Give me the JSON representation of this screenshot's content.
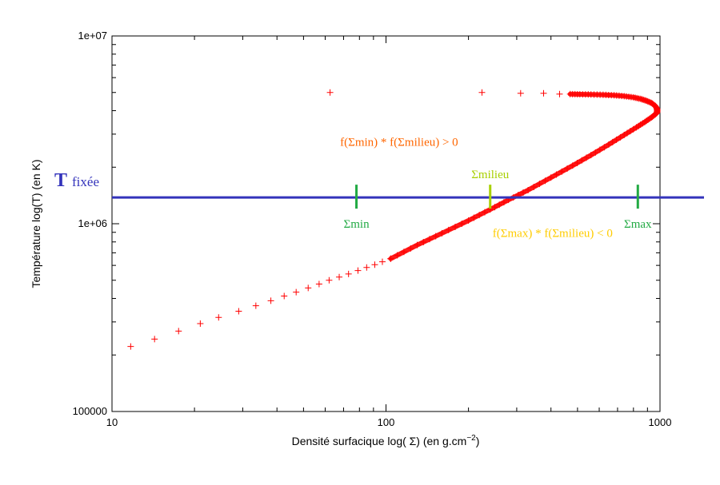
{
  "chart_data": {
    "type": "scatter",
    "xscale": "log",
    "yscale": "log",
    "xlim": [
      10,
      1000
    ],
    "ylim": [
      100000,
      10000000
    ],
    "xlabel_main": "Densité surfacique log( Σ) (en g.cm",
    "xlabel_sup": "−2",
    "xlabel_end": ")",
    "ylabel": "Température log(T) (en K)",
    "x_ticks": [
      {
        "value": 10,
        "label": "10"
      },
      {
        "value": 100,
        "label": "100"
      },
      {
        "value": 1000,
        "label": "1000"
      }
    ],
    "y_ticks": [
      {
        "value": 100000,
        "label": "100000"
      },
      {
        "value": 1000000,
        "label": "1e+06"
      },
      {
        "value": 10000000,
        "label": "1e+07"
      }
    ],
    "series": [
      {
        "name": "equilibrium",
        "marker": "+",
        "color": "#ff0000",
        "points": [
          [
            11.7,
            222000
          ],
          [
            14.3,
            243000
          ],
          [
            17.5,
            268000
          ],
          [
            21.0,
            294000
          ],
          [
            24.5,
            317000
          ],
          [
            29.0,
            342000
          ],
          [
            33.5,
            366000
          ],
          [
            38.0,
            389000
          ],
          [
            42.5,
            412000
          ],
          [
            47.0,
            432000
          ],
          [
            52.0,
            455000
          ],
          [
            57.0,
            477000
          ],
          [
            62.0,
            500000
          ],
          [
            67.5,
            520000
          ],
          [
            73.0,
            540000
          ],
          [
            79.0,
            563000
          ],
          [
            85.0,
            585000
          ],
          [
            91.0,
            605000
          ],
          [
            97.0,
            627000
          ],
          [
            104.0,
            651000
          ],
          [
            62.5,
            5000000
          ],
          [
            224.0,
            5000000
          ],
          [
            310.0,
            4950000
          ],
          [
            376.0,
            4950000
          ],
          [
            430.0,
            4900000
          ],
          [
            470.0,
            4900000
          ]
        ]
      }
    ],
    "curve": {
      "color": "#ff0000",
      "x": [
        104,
        130,
        160,
        200,
        240,
        280,
        330,
        400,
        480,
        560,
        650,
        740,
        820,
        880,
        930,
        960,
        975,
        977,
        975,
        960,
        930,
        890,
        850,
        800,
        740,
        680,
        620,
        560,
        510,
        470
      ],
      "y": [
        651000,
        770000,
        890000,
        1040000,
        1190000,
        1340000,
        1510000,
        1760000,
        2040000,
        2320000,
        2640000,
        2970000,
        3260000,
        3480000,
        3680000,
        3820000,
        3900000,
        4000000,
        4100000,
        4250000,
        4400000,
        4520000,
        4620000,
        4710000,
        4780000,
        4830000,
        4860000,
        4880000,
        4890000,
        4900000
      ]
    },
    "hline": {
      "y": 1380000,
      "color": "#3333bb"
    },
    "markers": [
      {
        "name": "sigma-min-marker",
        "x": 78,
        "label": "Σmin",
        "color": "#22aa44",
        "label_pos": "below"
      },
      {
        "name": "sigma-milieu-marker",
        "x": 240,
        "label": "Σmilieu",
        "color": "#a8d000",
        "label_pos": "above"
      },
      {
        "name": "sigma-max-marker",
        "x": 830,
        "label": "Σmax",
        "color": "#22aa44",
        "label_pos": "below"
      }
    ],
    "annotations": [
      {
        "name": "annotation-min",
        "text": "f(Σmin) * f(Σmilieu) > 0",
        "color": "#ff6600",
        "x": 68,
        "y": 2600000
      },
      {
        "name": "annotation-max",
        "text": "f(Σmax) * f(Σmilieu) < 0",
        "color": "#ffcc00",
        "x": 245,
        "y": 850000
      }
    ],
    "t_fixee": {
      "big": "T",
      "small": "fixée",
      "color": "#3333bb"
    }
  }
}
